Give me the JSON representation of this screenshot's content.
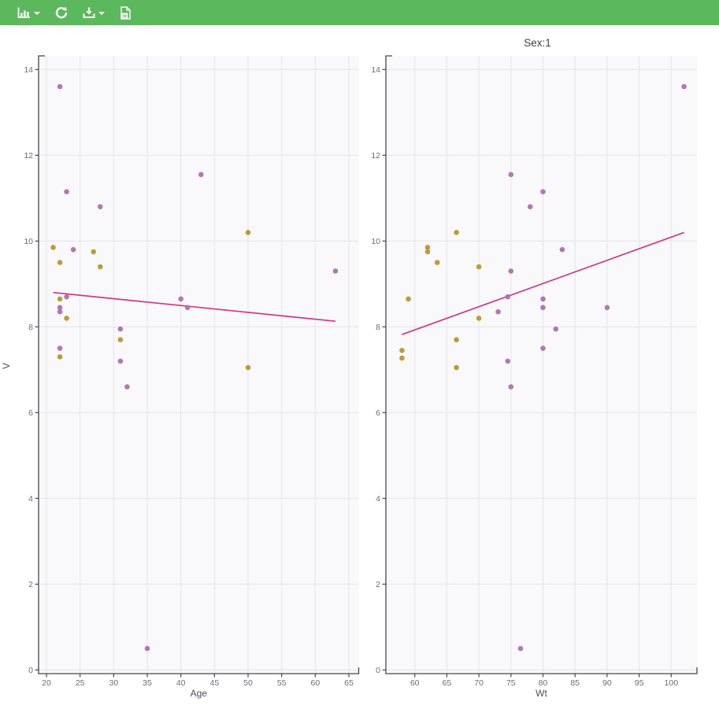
{
  "toolbar": {
    "buttons": [
      {
        "name": "plot-type-dropdown",
        "icon": "bar-chart-icon",
        "has_caret": true
      },
      {
        "name": "refresh-button",
        "icon": "refresh-icon",
        "has_caret": false
      },
      {
        "name": "download-dropdown",
        "icon": "download-icon",
        "has_caret": true
      },
      {
        "name": "word-export-button",
        "icon": "word-doc-icon",
        "has_caret": false
      }
    ]
  },
  "colors": {
    "toolbar_bg": "#5cb85c",
    "panel_bg": "#f9f9fb",
    "grid": "#e5e5ea",
    "axis": "#47474d",
    "tick_text": "#6b6e79",
    "label_text": "#4b4e57",
    "trend": "#d2367c",
    "gold": "#b7972f",
    "purple": "#b06fb0"
  },
  "chart_data": [
    {
      "type": "scatter",
      "title": "",
      "xlabel": "Age",
      "ylabel": "V",
      "xlim": [
        18.8,
        66.5
      ],
      "ylim": [
        -0.1,
        14.4
      ],
      "xticks": [
        20,
        25,
        30,
        35,
        40,
        45,
        50,
        55,
        60,
        65
      ],
      "yticks": [
        0,
        2,
        4,
        6,
        8,
        10,
        12,
        14
      ],
      "grid": true,
      "legend": "none",
      "series": [
        {
          "name": "series-gold",
          "color": "#b7972f",
          "points": [
            [
              21,
              9.85
            ],
            [
              22,
              9.5
            ],
            [
              22,
              8.65
            ],
            [
              22,
              7.3
            ],
            [
              23,
              8.2
            ],
            [
              27,
              9.75
            ],
            [
              28,
              9.4
            ],
            [
              31,
              7.7
            ],
            [
              50,
              10.2
            ],
            [
              50,
              7.05
            ]
          ]
        },
        {
          "name": "series-purple",
          "color": "#b06fb0",
          "points": [
            [
              22,
              13.6
            ],
            [
              23,
              11.15
            ],
            [
              43,
              11.55
            ],
            [
              28,
              10.8
            ],
            [
              24,
              9.8
            ],
            [
              63,
              9.3
            ],
            [
              23,
              8.7
            ],
            [
              22,
              8.45
            ],
            [
              22,
              8.35
            ],
            [
              40,
              8.65
            ],
            [
              41,
              8.45
            ],
            [
              31,
              7.95
            ],
            [
              22,
              7.5
            ],
            [
              31,
              7.2
            ],
            [
              32,
              6.6
            ],
            [
              35,
              0.5
            ]
          ]
        }
      ],
      "trend": {
        "x1": 21,
        "y1": 8.8,
        "x2": 63,
        "y2": 8.13
      }
    },
    {
      "type": "scatter",
      "title": "Sex:1",
      "xlabel": "Wt",
      "ylabel": "",
      "xlim": [
        55.5,
        104
      ],
      "ylim": [
        -0.1,
        14.4
      ],
      "xticks": [
        60,
        65,
        70,
        75,
        80,
        85,
        90,
        95,
        100
      ],
      "yticks": [
        0,
        2,
        4,
        6,
        8,
        10,
        12,
        14
      ],
      "grid": true,
      "legend": "none",
      "series": [
        {
          "name": "series-gold",
          "color": "#b7972f",
          "points": [
            [
              58,
              7.45
            ],
            [
              58,
              7.27
            ],
            [
              59,
              8.65
            ],
            [
              62,
              9.85
            ],
            [
              62,
              9.75
            ],
            [
              63.5,
              9.5
            ],
            [
              66.5,
              10.2
            ],
            [
              66.5,
              7.7
            ],
            [
              66.5,
              7.05
            ],
            [
              70,
              9.4
            ],
            [
              70,
              8.2
            ]
          ]
        },
        {
          "name": "series-purple",
          "color": "#b06fb0",
          "points": [
            [
              102,
              13.6
            ],
            [
              75,
              11.55
            ],
            [
              80,
              11.15
            ],
            [
              78,
              10.8
            ],
            [
              83,
              9.8
            ],
            [
              75,
              9.3
            ],
            [
              74.5,
              8.7
            ],
            [
              80,
              8.65
            ],
            [
              80,
              8.45
            ],
            [
              90,
              8.45
            ],
            [
              73,
              8.35
            ],
            [
              82,
              7.95
            ],
            [
              80,
              7.5
            ],
            [
              74.5,
              7.2
            ],
            [
              75,
              6.6
            ],
            [
              76.5,
              0.5
            ]
          ]
        }
      ],
      "trend": {
        "x1": 58,
        "y1": 7.82,
        "x2": 102,
        "y2": 10.2
      }
    }
  ]
}
